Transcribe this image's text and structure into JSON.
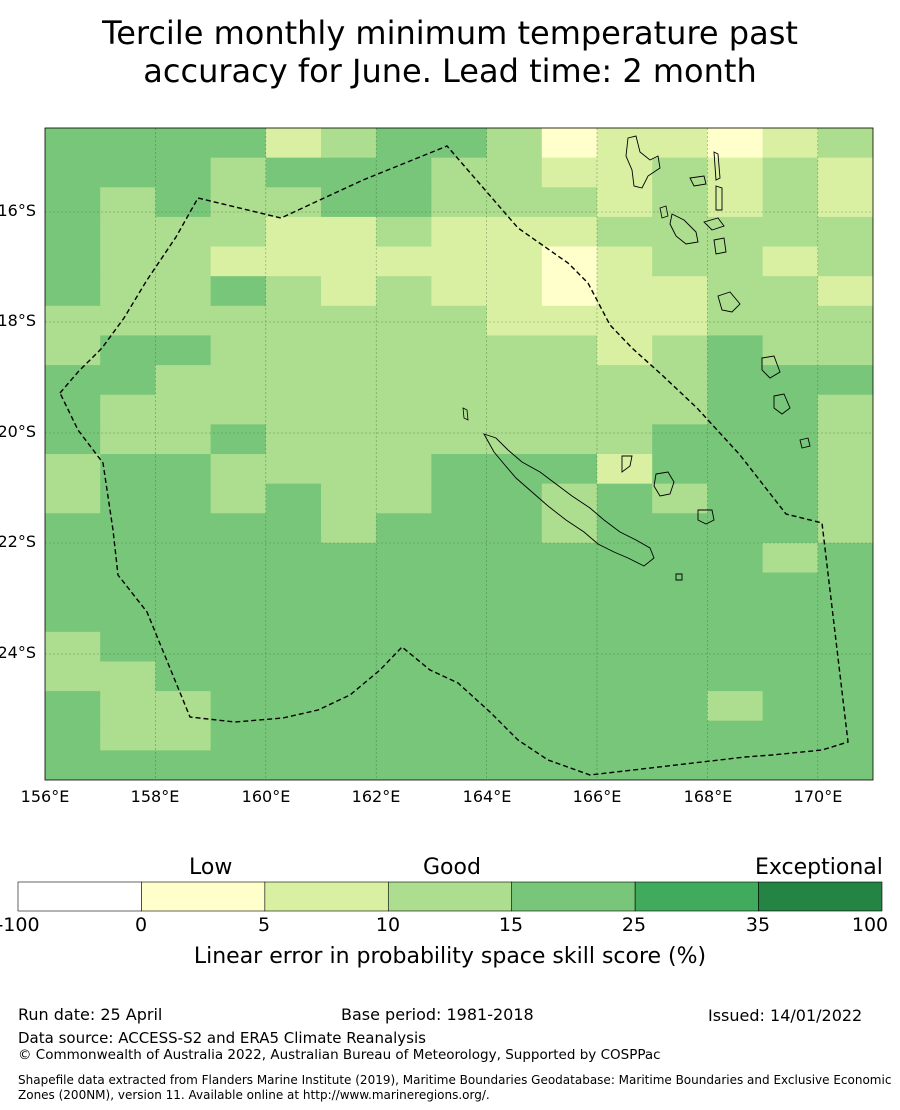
{
  "title_line1": "Tercile monthly minimum temperature past",
  "title_line2": "accuracy for June. Lead time: 2 month",
  "map": {
    "lon_range": [
      156,
      171
    ],
    "lat_range": [
      -26.5,
      -14.5
    ],
    "lat_labels": [
      "16°S",
      "18°S",
      "20°S",
      "22°S",
      "24°S"
    ],
    "lon_labels": [
      "156°E",
      "158°E",
      "160°E",
      "162°E",
      "164°E",
      "166°E",
      "168°E",
      "170°E"
    ],
    "boundary": "dashed maritime boundary (EEZ)",
    "land_features": "coastlines: New Caledonia, Loyalty Islands, Vanuatu"
  },
  "legend": {
    "categories": [
      "Low",
      "Good",
      "Exceptional"
    ],
    "ticks": [
      "-100",
      "0",
      "5",
      "10",
      "15",
      "25",
      "35",
      "100"
    ],
    "bins": [
      {
        "range": "-100 to 0",
        "color": "#ffffff"
      },
      {
        "range": "0 to 5",
        "color": "#ffffcc"
      },
      {
        "range": "5 to 10",
        "color": "#d9f0a3"
      },
      {
        "range": "10 to 15",
        "color": "#addd8e"
      },
      {
        "range": "15 to 25",
        "color": "#78c679"
      },
      {
        "range": "25 to 35",
        "color": "#41ab5d"
      },
      {
        "range": "35 to 100",
        "color": "#238443"
      }
    ],
    "title": "Linear error in probability space skill score (%)"
  },
  "footer": {
    "run_date": "Run date: 25 April",
    "base_period": "Base period: 1981-2018",
    "issued": "Issued: 14/01/2022",
    "data_source": "Data source: ACCESS-S2 and ERA5 Climate Reanalysis",
    "copyright": "© Commonwealth of Australia 2022, Australian Bureau of Meteorology, Supported by COSPPac",
    "shapefile_line1": "Shapefile data extracted from Flanders Marine Institute (2019), Maritime Boundaries Geodatabase: Maritime Boundaries and Exclusive Economic",
    "shapefile_line2": "Zones (200NM), version 11. Available online at http://www.marineregions.org/."
  }
}
